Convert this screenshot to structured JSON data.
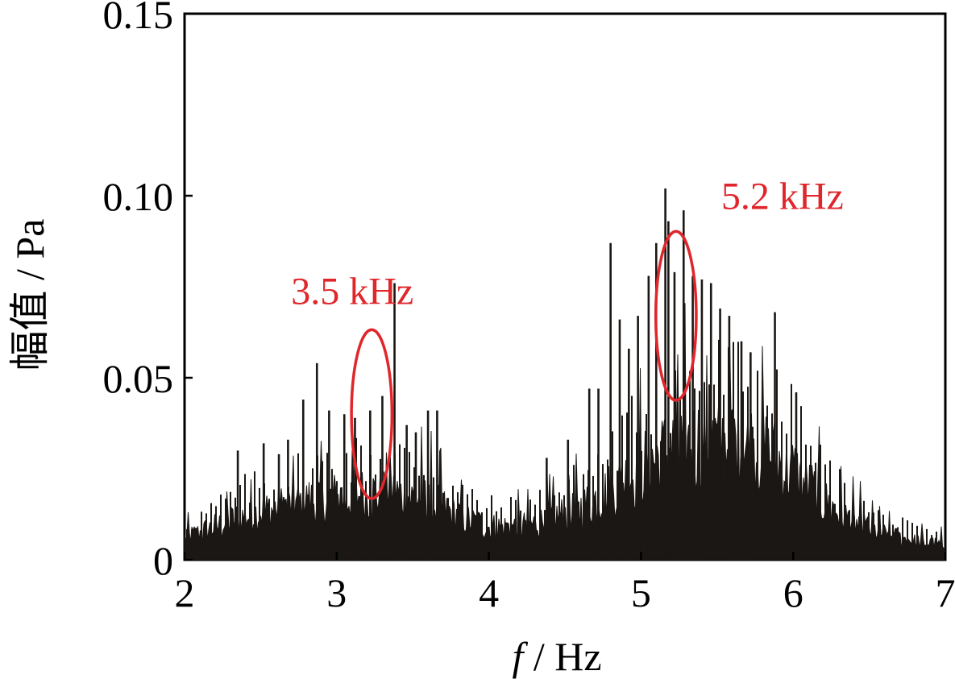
{
  "chart_data": {
    "type": "line",
    "title": "",
    "xlabel_italic": "f",
    "xlabel_rest": " / Hz",
    "ylabel": "幅值 / Pa",
    "xlim": [
      2,
      7
    ],
    "ylim": [
      0,
      0.15
    ],
    "x_ticks": [
      2,
      3,
      4,
      5,
      6,
      7
    ],
    "x_tick_labels": [
      "2",
      "3",
      "4",
      "5",
      "6",
      "7"
    ],
    "y_ticks": [
      0,
      0.05,
      0.1,
      0.15
    ],
    "y_tick_labels": [
      "0",
      "0.05",
      "0.10",
      "0.15"
    ],
    "grid": false,
    "series_color": "#1a1714",
    "annotation_color": "#e0262b",
    "annotations": [
      {
        "text": "3.5 kHz",
        "ellipse_center": [
          3.23,
          0.04
        ],
        "ellipse_radius": [
          0.7,
          0.016
        ]
      },
      {
        "text": "5.2 kHz",
        "ellipse_center": [
          5.23,
          0.067
        ],
        "ellipse_radius": [
          0.7,
          0.016
        ]
      }
    ],
    "envelope": {
      "x": [
        2.0,
        2.2,
        2.4,
        2.6,
        2.8,
        3.0,
        3.2,
        3.4,
        3.6,
        3.8,
        4.0,
        4.2,
        4.4,
        4.6,
        4.8,
        5.0,
        5.2,
        5.4,
        5.6,
        5.8,
        6.0,
        6.2,
        6.4,
        6.6,
        6.8,
        7.0
      ],
      "y": [
        0.006,
        0.009,
        0.012,
        0.014,
        0.016,
        0.017,
        0.018,
        0.018,
        0.016,
        0.012,
        0.009,
        0.009,
        0.011,
        0.014,
        0.019,
        0.025,
        0.03,
        0.032,
        0.032,
        0.03,
        0.024,
        0.016,
        0.01,
        0.007,
        0.005,
        0.004
      ]
    },
    "peaks": {
      "x": [
        2.35,
        2.52,
        2.62,
        2.68,
        2.78,
        2.87,
        2.95,
        3.05,
        3.12,
        3.22,
        3.3,
        3.38,
        3.46,
        3.52,
        3.6,
        3.66,
        4.38,
        4.52,
        4.66,
        4.72,
        4.8,
        4.86,
        4.92,
        4.98,
        5.05,
        5.1,
        5.16,
        5.18,
        5.22,
        5.28,
        5.34,
        5.4,
        5.46,
        5.52,
        5.58,
        5.66,
        5.72,
        5.88,
        6.02
      ],
      "y": [
        0.03,
        0.032,
        0.029,
        0.033,
        0.044,
        0.054,
        0.041,
        0.04,
        0.039,
        0.041,
        0.045,
        0.076,
        0.037,
        0.035,
        0.041,
        0.041,
        0.028,
        0.033,
        0.047,
        0.047,
        0.087,
        0.066,
        0.058,
        0.067,
        0.078,
        0.087,
        0.102,
        0.093,
        0.079,
        0.096,
        0.078,
        0.077,
        0.076,
        0.069,
        0.067,
        0.06,
        0.057,
        0.068,
        0.046
      ]
    }
  }
}
